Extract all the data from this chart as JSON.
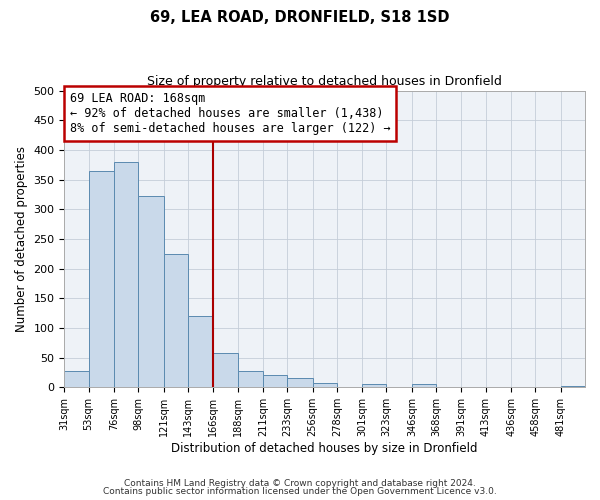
{
  "title": "69, LEA ROAD, DRONFIELD, S18 1SD",
  "subtitle": "Size of property relative to detached houses in Dronfield",
  "xlabel": "Distribution of detached houses by size in Dronfield",
  "ylabel": "Number of detached properties",
  "bin_labels": [
    "31sqm",
    "53sqm",
    "76sqm",
    "98sqm",
    "121sqm",
    "143sqm",
    "166sqm",
    "188sqm",
    "211sqm",
    "233sqm",
    "256sqm",
    "278sqm",
    "301sqm",
    "323sqm",
    "346sqm",
    "368sqm",
    "391sqm",
    "413sqm",
    "436sqm",
    "458sqm",
    "481sqm"
  ],
  "bar_heights": [
    28,
    365,
    380,
    322,
    225,
    120,
    58,
    28,
    20,
    15,
    7,
    0,
    5,
    0,
    5,
    0,
    0,
    0,
    0,
    0,
    3
  ],
  "bar_color": "#c9d9ea",
  "bar_edge_color": "#5b8ab0",
  "vline_color": "#aa0000",
  "ylim": [
    0,
    500
  ],
  "annotation_title": "69 LEA ROAD: 168sqm",
  "annotation_line1": "← 92% of detached houses are smaller (1,438)",
  "annotation_line2": "8% of semi-detached houses are larger (122) →",
  "annotation_box_edge": "#bb0000",
  "footnote1": "Contains HM Land Registry data © Crown copyright and database right 2024.",
  "footnote2": "Contains public sector information licensed under the Open Government Licence v3.0.",
  "bin_edges": [
    31,
    53,
    76,
    98,
    121,
    143,
    166,
    188,
    211,
    233,
    256,
    278,
    301,
    323,
    346,
    368,
    391,
    413,
    436,
    458,
    481,
    503
  ]
}
